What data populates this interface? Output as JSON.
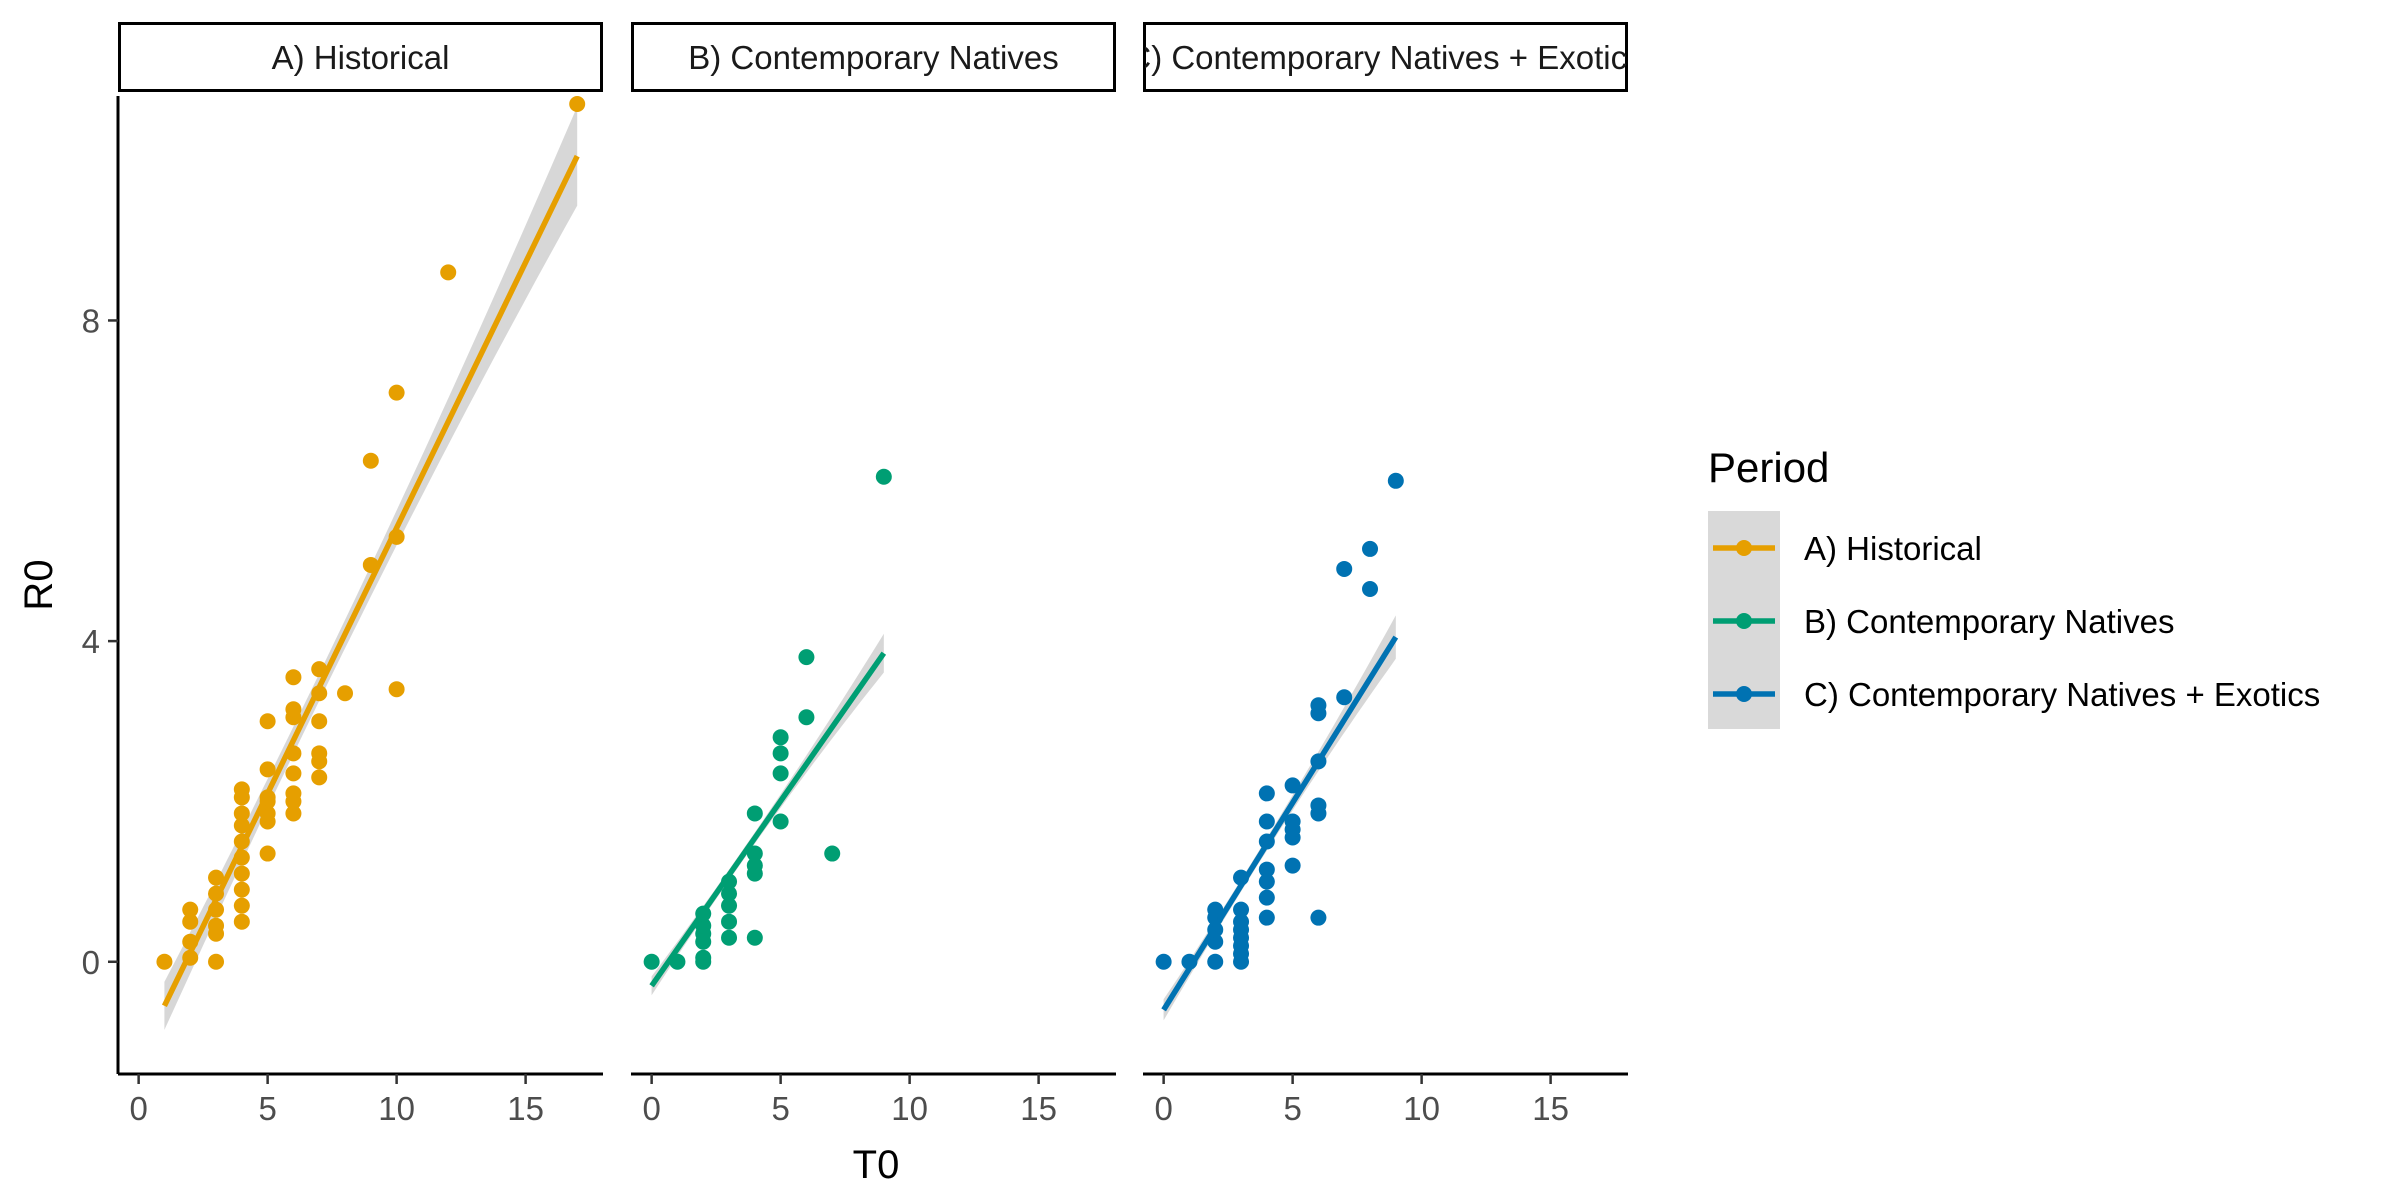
{
  "chart_data": {
    "type": "scatter",
    "xlabel": "T0",
    "ylabel": "R0",
    "xlim": [
      -0.8,
      18
    ],
    "ylim": [
      -1.4,
      10.8
    ],
    "x_ticks": [
      0,
      5,
      10,
      15
    ],
    "y_ticks": [
      0,
      4,
      8
    ],
    "grid": false,
    "legend": {
      "title": "Period",
      "placement": "right",
      "entries": [
        {
          "label": "A) Historical",
          "color": "#E69F00"
        },
        {
          "label": "B) Contemporary Natives",
          "color": "#009E73"
        },
        {
          "label": "C) Contemporary Natives + Exotics",
          "color": "#0072B2"
        }
      ]
    },
    "panels": [
      {
        "strip_label": "A) Historical",
        "series_name": "A) Historical",
        "color": "#E69F00",
        "fit": {
          "x": [
            1,
            17
          ],
          "y": [
            -0.55,
            10.05
          ]
        },
        "points": [
          [
            1,
            0
          ],
          [
            2,
            0.05
          ],
          [
            2,
            0.25
          ],
          [
            2,
            0.5
          ],
          [
            2,
            0.65
          ],
          [
            3,
            0
          ],
          [
            3,
            0.35
          ],
          [
            3,
            0.45
          ],
          [
            3,
            0.65
          ],
          [
            3,
            0.85
          ],
          [
            3,
            1.05
          ],
          [
            4,
            0.5
          ],
          [
            4,
            0.7
          ],
          [
            4,
            0.9
          ],
          [
            4,
            1.1
          ],
          [
            4,
            1.3
          ],
          [
            4,
            1.5
          ],
          [
            4,
            1.7
          ],
          [
            4,
            1.85
          ],
          [
            4,
            2.05
          ],
          [
            4,
            2.15
          ],
          [
            5,
            1.35
          ],
          [
            5,
            1.75
          ],
          [
            5,
            1.85
          ],
          [
            5,
            2.0
          ],
          [
            5,
            2.05
          ],
          [
            5,
            2.4
          ],
          [
            5,
            3.0
          ],
          [
            6,
            1.85
          ],
          [
            6,
            2.0
          ],
          [
            6,
            2.1
          ],
          [
            6,
            2.35
          ],
          [
            6,
            2.6
          ],
          [
            6,
            3.05
          ],
          [
            6,
            3.15
          ],
          [
            6,
            3.55
          ],
          [
            7,
            2.3
          ],
          [
            7,
            2.5
          ],
          [
            7,
            2.6
          ],
          [
            7,
            3.0
          ],
          [
            7,
            3.35
          ],
          [
            7,
            3.65
          ],
          [
            8,
            3.35
          ],
          [
            9,
            4.95
          ],
          [
            9,
            6.25
          ],
          [
            10,
            3.4
          ],
          [
            10,
            5.3
          ],
          [
            10,
            7.1
          ],
          [
            12,
            8.6
          ],
          [
            17,
            10.7
          ]
        ]
      },
      {
        "strip_label": "B) Contemporary Natives",
        "series_name": "B) Contemporary Natives",
        "color": "#009E73",
        "fit": {
          "x": [
            0,
            9
          ],
          "y": [
            -0.3,
            3.85
          ]
        },
        "points": [
          [
            0,
            0
          ],
          [
            1,
            0
          ],
          [
            2,
            0
          ],
          [
            2,
            0.05
          ],
          [
            2,
            0.25
          ],
          [
            2,
            0.35
          ],
          [
            2,
            0.45
          ],
          [
            2,
            0.6
          ],
          [
            3,
            0.3
          ],
          [
            3,
            0.5
          ],
          [
            3,
            0.7
          ],
          [
            3,
            0.85
          ],
          [
            3,
            1.0
          ],
          [
            4,
            0.3
          ],
          [
            4,
            1.1
          ],
          [
            4,
            1.2
          ],
          [
            4,
            1.35
          ],
          [
            4,
            1.85
          ],
          [
            5,
            1.75
          ],
          [
            5,
            2.35
          ],
          [
            5,
            2.6
          ],
          [
            5,
            2.8
          ],
          [
            6,
            3.05
          ],
          [
            6,
            3.8
          ],
          [
            7,
            1.35
          ],
          [
            9,
            6.05
          ]
        ]
      },
      {
        "strip_label": "C) Contemporary Natives + Exotics",
        "series_name": "C) Contemporary Natives + Exotics",
        "color": "#0072B2",
        "fit": {
          "x": [
            0,
            9
          ],
          "y": [
            -0.6,
            4.05
          ]
        },
        "points": [
          [
            0,
            0
          ],
          [
            1,
            0
          ],
          [
            2,
            0
          ],
          [
            2,
            0.25
          ],
          [
            2,
            0.4
          ],
          [
            2,
            0.55
          ],
          [
            2,
            0.65
          ],
          [
            3,
            0
          ],
          [
            3,
            0.1
          ],
          [
            3,
            0.2
          ],
          [
            3,
            0.3
          ],
          [
            3,
            0.4
          ],
          [
            3,
            0.5
          ],
          [
            3,
            0.65
          ],
          [
            3,
            1.05
          ],
          [
            4,
            0.55
          ],
          [
            4,
            0.8
          ],
          [
            4,
            1.0
          ],
          [
            4,
            1.15
          ],
          [
            4,
            1.5
          ],
          [
            4,
            1.75
          ],
          [
            4,
            2.1
          ],
          [
            5,
            1.2
          ],
          [
            5,
            1.55
          ],
          [
            5,
            1.65
          ],
          [
            5,
            1.75
          ],
          [
            5,
            2.2
          ],
          [
            6,
            0.55
          ],
          [
            6,
            1.85
          ],
          [
            6,
            1.95
          ],
          [
            6,
            2.5
          ],
          [
            6,
            3.1
          ],
          [
            6,
            3.2
          ],
          [
            7,
            3.3
          ],
          [
            7,
            4.9
          ],
          [
            8,
            4.65
          ],
          [
            8,
            5.15
          ],
          [
            9,
            6.0
          ]
        ]
      }
    ]
  }
}
